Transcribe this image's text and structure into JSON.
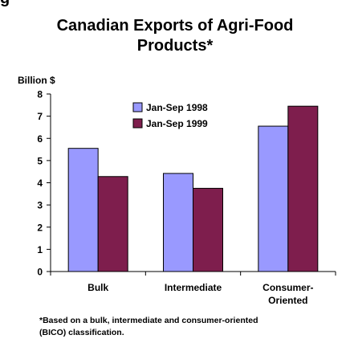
{
  "top_fragment": "g",
  "chart_data": {
    "type": "bar",
    "title_lines": [
      "Canadian Exports of Agri-Food",
      "Products*"
    ],
    "ylabel": "Billion $",
    "xlabel": "",
    "ylim": [
      0,
      8
    ],
    "yticks": [
      0,
      1,
      2,
      3,
      4,
      5,
      6,
      7,
      8
    ],
    "categories": [
      [
        "Bulk"
      ],
      [
        "Intermediate"
      ],
      [
        "Consumer-",
        "Oriented"
      ]
    ],
    "series": [
      {
        "name": "Jan-Sep 1998",
        "color": "#9999ff",
        "values": [
          5.55,
          4.42,
          6.55
        ]
      },
      {
        "name": "Jan-Sep 1999",
        "color": "#7e1e4d",
        "values": [
          4.28,
          3.75,
          7.45
        ]
      }
    ],
    "grid": false,
    "legend_position": "top-center"
  },
  "footnote_lines": [
    "*Based on a bulk, intermediate and consumer-oriented",
    "(BICO) classification."
  ]
}
